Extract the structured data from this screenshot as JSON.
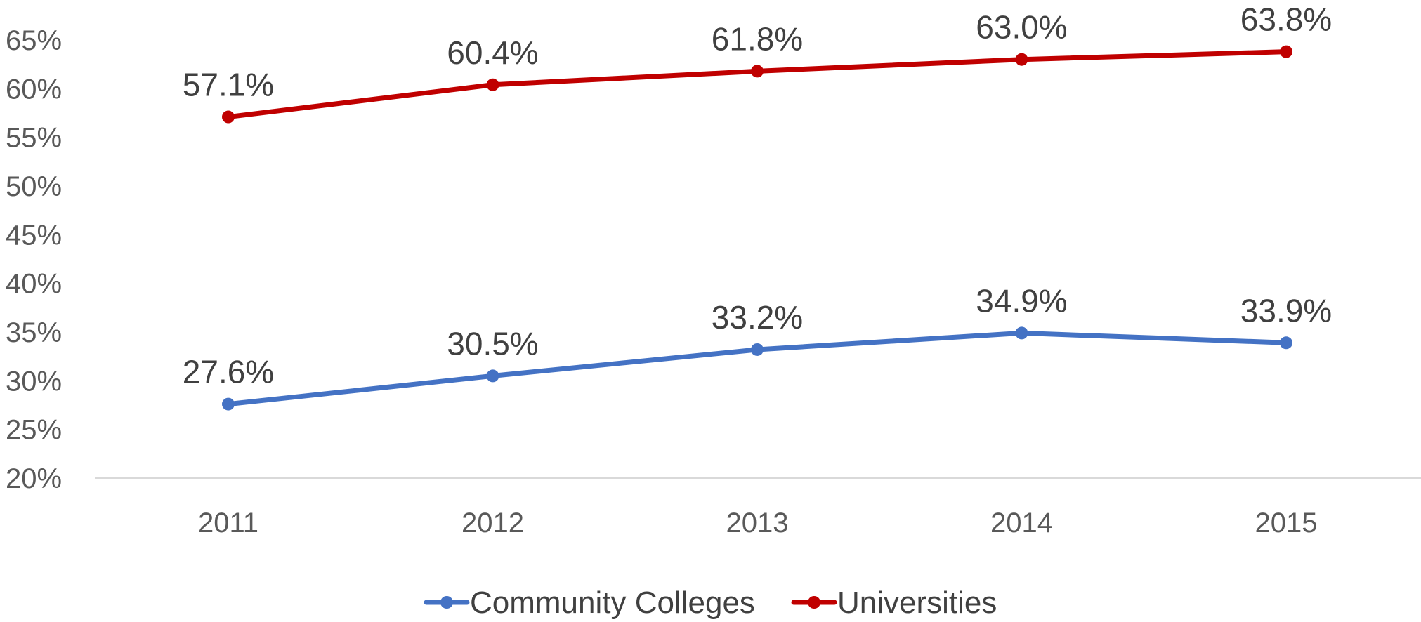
{
  "chart_data": {
    "type": "line",
    "x": [
      "2011",
      "2012",
      "2013",
      "2014",
      "2015"
    ],
    "series": [
      {
        "name": "Community Colleges",
        "color": "#4472C4",
        "values": [
          27.6,
          30.5,
          33.2,
          34.9,
          33.9
        ],
        "labels": [
          "27.6%",
          "30.5%",
          "33.2%",
          "34.9%",
          "33.9%"
        ]
      },
      {
        "name": "Universities",
        "color": "#C00000",
        "values": [
          57.1,
          60.4,
          61.8,
          63.0,
          63.8
        ],
        "labels": [
          "57.1%",
          "60.4%",
          "61.8%",
          "63.0%",
          "63.8%"
        ]
      }
    ],
    "ylim": [
      20,
      65
    ],
    "yticks": [
      20,
      25,
      30,
      35,
      40,
      45,
      50,
      55,
      60,
      65
    ],
    "ytick_labels": [
      "20%",
      "25%",
      "30%",
      "35%",
      "40%",
      "45%",
      "50%",
      "55%",
      "60%",
      "65%"
    ],
    "grid": false,
    "legend": "bottom",
    "axis_color": "#D9D9D9"
  }
}
